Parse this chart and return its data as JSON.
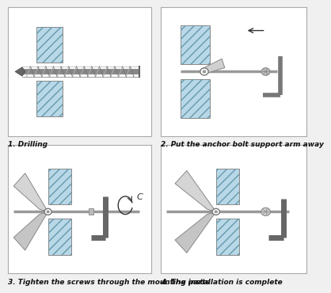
{
  "bg_color": "#f0f0f0",
  "panel_bg": "#ffffff",
  "wall_color": "#b8d8e8",
  "metal_color": "#999999",
  "metal_dark": "#666666",
  "metal_light": "#cccccc",
  "panel_edge": "#888888",
  "labels": [
    "1. Drilling",
    "2. Put the anchor bolt support arm away",
    "3. Tighten the screws through the mounting parts",
    "4. The installation is complete"
  ],
  "label_fontsize": 6.5,
  "label_style": "italic",
  "label_weight": "bold"
}
